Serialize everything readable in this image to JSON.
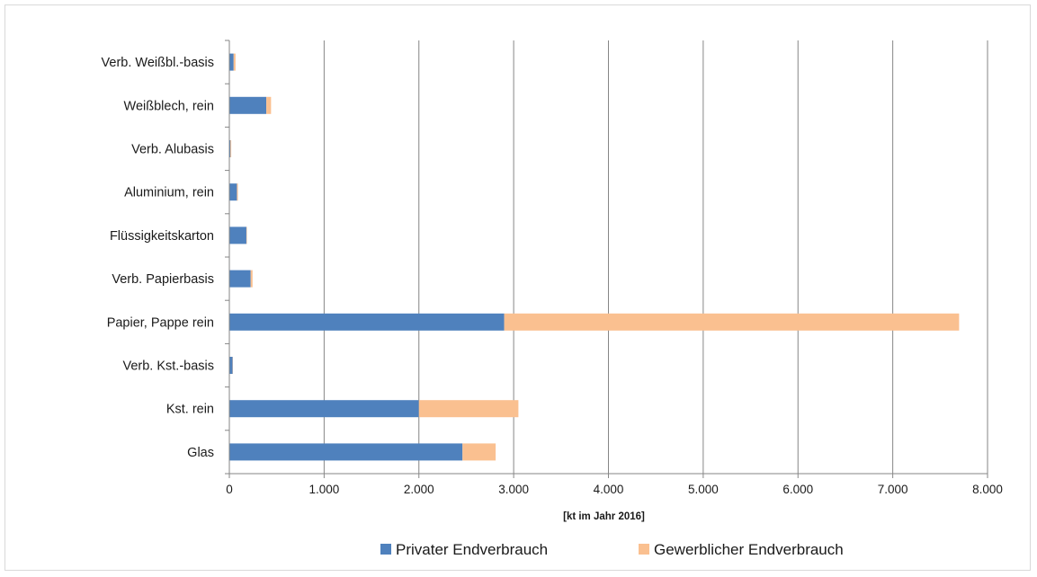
{
  "chart_data": {
    "type": "bar",
    "orientation": "horizontal",
    "stacked": true,
    "categories": [
      "Verb. Weißbl.-basis",
      "Weißblech, rein",
      "Verb. Alubasis",
      "Aluminium, rein",
      "Flüssigkeitskarton",
      "Verb. Papierbasis",
      "Papier, Pappe rein",
      "Verb. Kst.-basis",
      "Kst. rein",
      "Glas"
    ],
    "series": [
      {
        "name": "Privater Endverbrauch",
        "color": "#4f81bd",
        "values": [
          45,
          390,
          12,
          80,
          180,
          225,
          2900,
          35,
          2000,
          2460
        ]
      },
      {
        "name": "Gewerblicher Endverbrauch",
        "color": "#fac090",
        "values": [
          20,
          50,
          8,
          10,
          5,
          20,
          4800,
          3,
          1050,
          350
        ]
      }
    ],
    "xlim": [
      0,
      8000
    ],
    "xticks": [
      0,
      1000,
      2000,
      3000,
      4000,
      5000,
      6000,
      7000,
      8000
    ],
    "xtick_labels": [
      "0",
      "1.000",
      "2.000",
      "3.000",
      "4.000",
      "5.000",
      "6.000",
      "7.000",
      "8.000"
    ],
    "xlabel": "[kt im Jahr 2016]",
    "ylabel": "",
    "title": "",
    "grid": "vertical",
    "legend_position": "bottom"
  }
}
